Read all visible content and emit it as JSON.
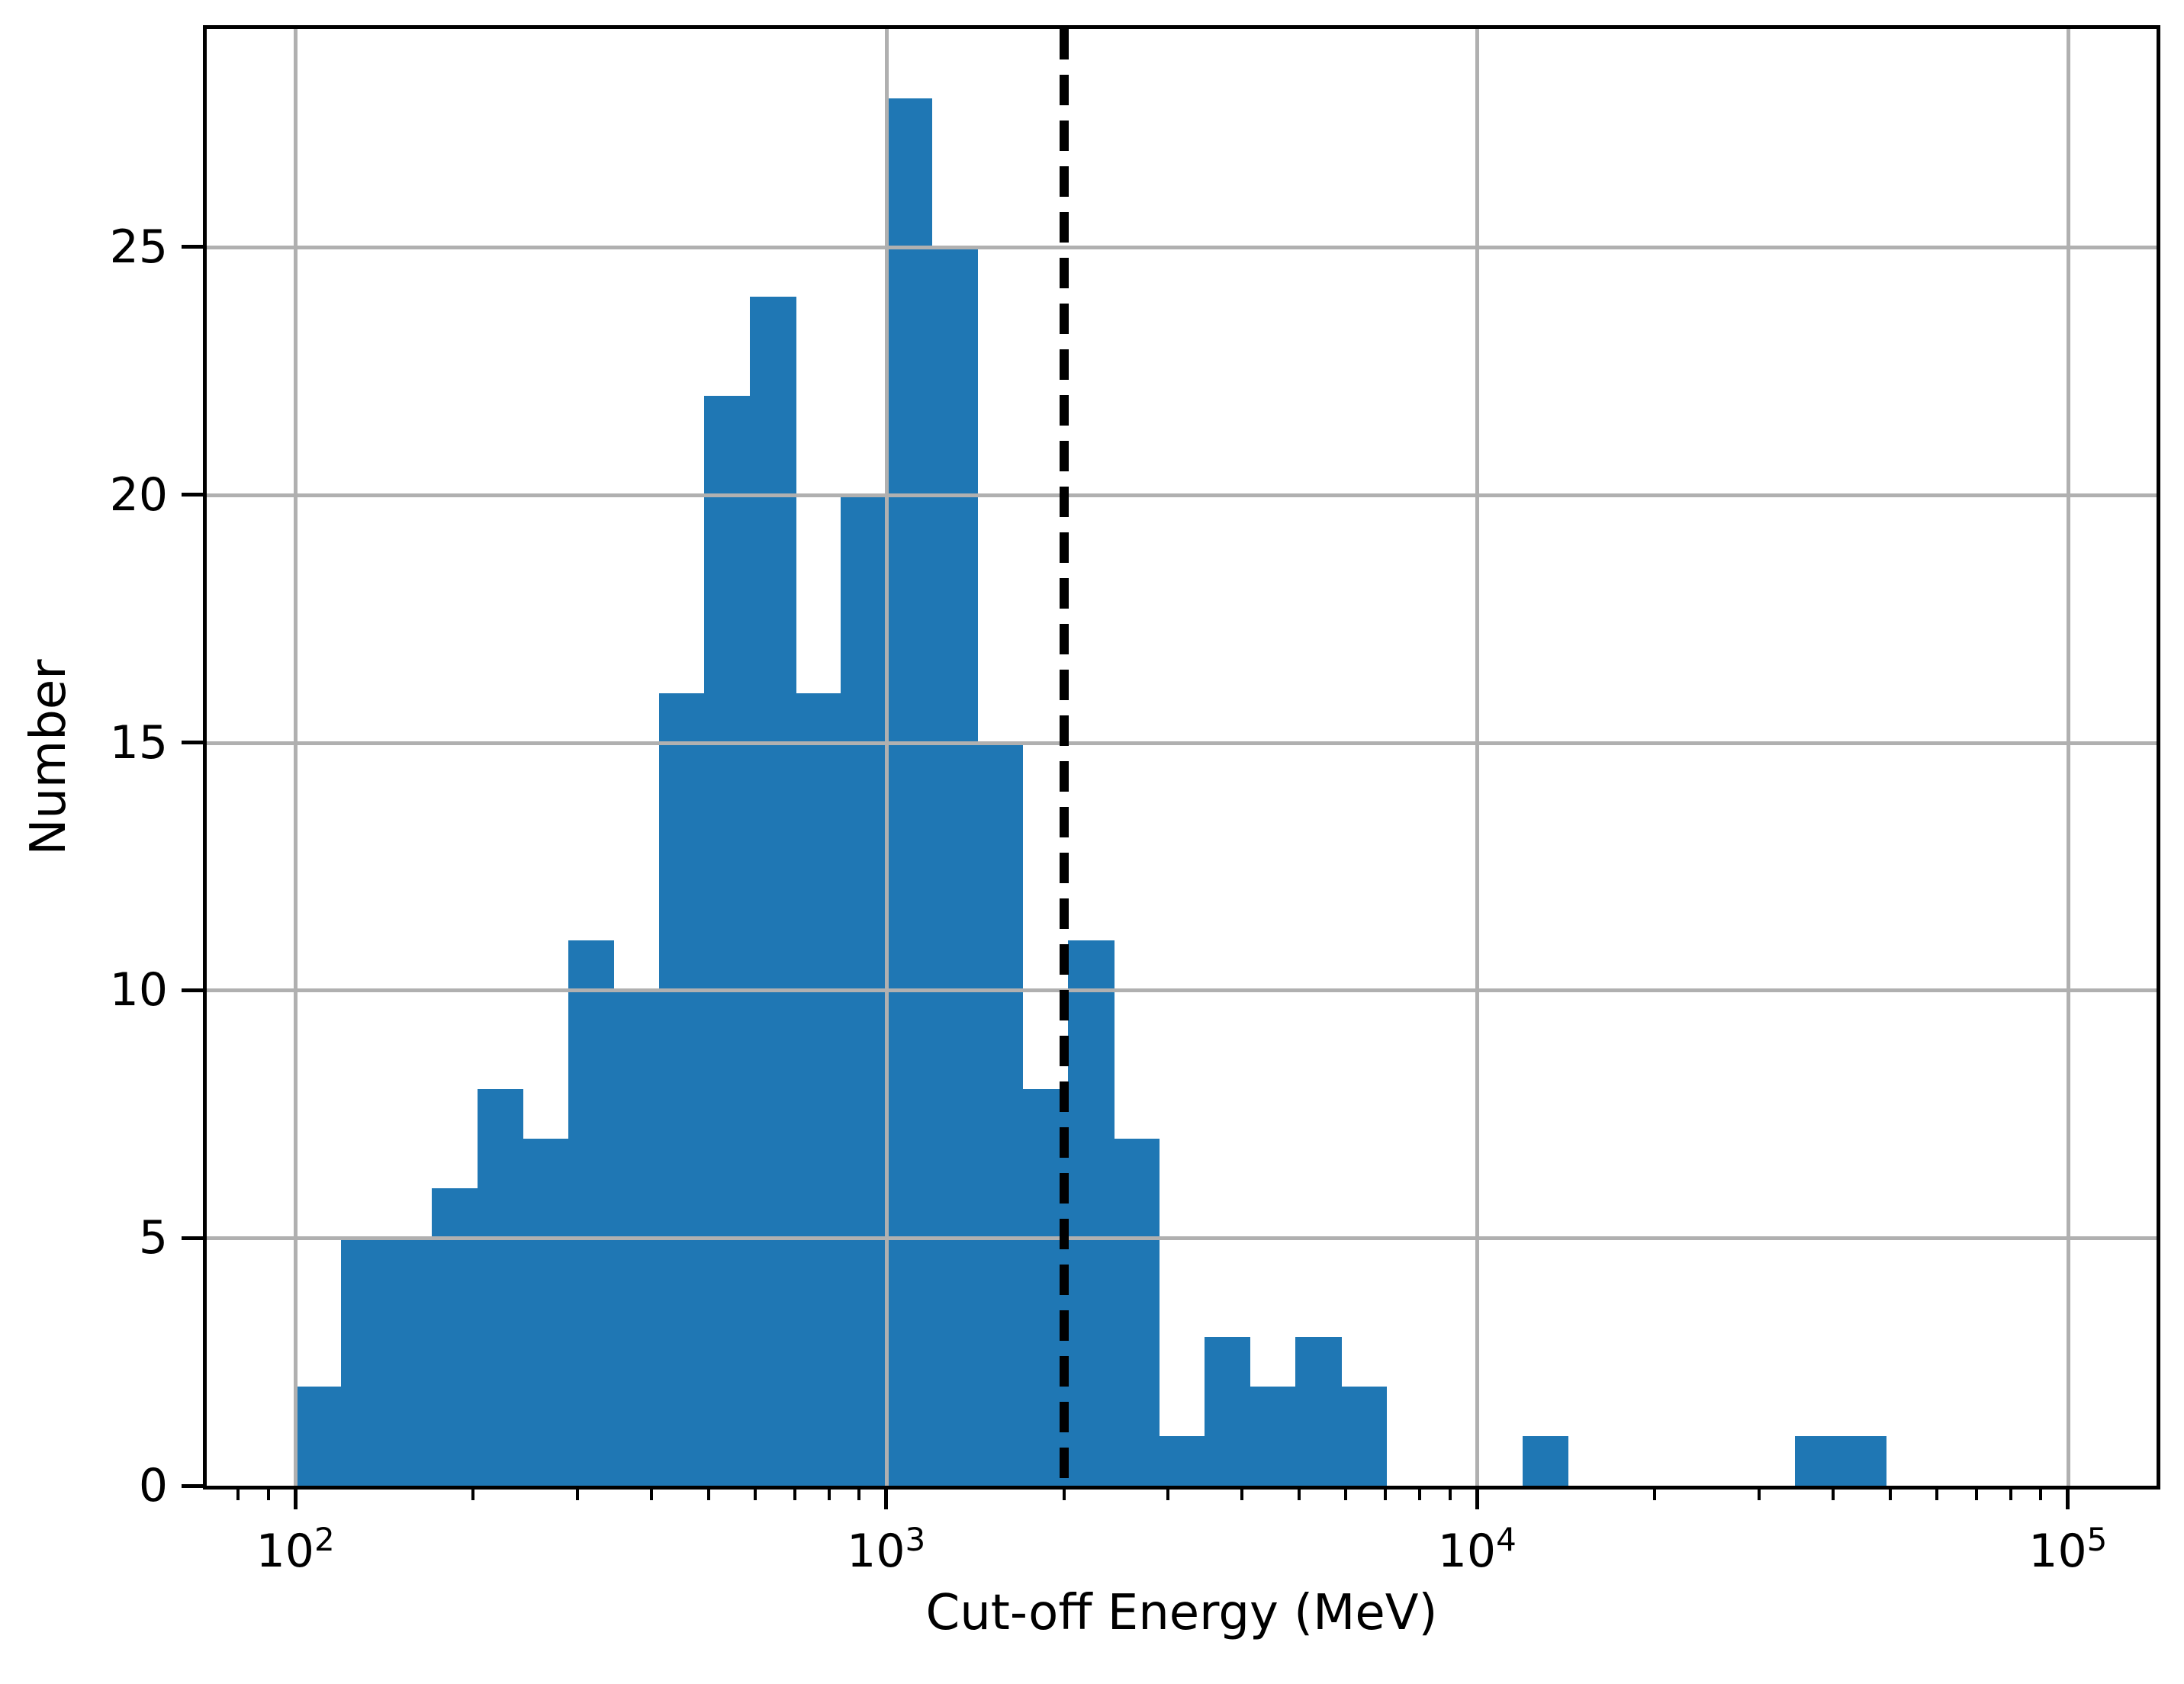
{
  "figure": {
    "xlabel": "Cut-off Energy (MeV)",
    "ylabel": "Number"
  },
  "chart_data": {
    "type": "bar",
    "subtype": "histogram",
    "title": "",
    "xlabel": "Cut-off Energy (MeV)",
    "ylabel": "Number",
    "x_scale": "log10",
    "xlim_log10": [
      1.85,
      5.15
    ],
    "ylim": [
      0,
      29.4
    ],
    "grid": true,
    "grid_color": "#b0b0b0",
    "bar_color": "#1f77b4",
    "axis_color": "#000000",
    "bins": {
      "edges_log10_start": 2.0,
      "edges_log10_end": 5.0,
      "n_bins": 39,
      "note": "39 equal bins in log10 space from 100 MeV to 100000 MeV"
    },
    "counts": [
      2,
      5,
      5,
      6,
      8,
      7,
      11,
      10,
      16,
      22,
      24,
      16,
      20,
      28,
      25,
      15,
      8,
      11,
      7,
      1,
      3,
      2,
      3,
      2,
      0,
      0,
      0,
      1,
      0,
      0,
      0,
      0,
      0,
      1,
      1,
      0,
      0,
      0,
      0
    ],
    "x_major_ticks": [
      {
        "value": 100,
        "base": "10",
        "exponent": "2"
      },
      {
        "value": 1000,
        "base": "10",
        "exponent": "3"
      },
      {
        "value": 10000,
        "base": "10",
        "exponent": "4"
      },
      {
        "value": 100000,
        "base": "10",
        "exponent": "5"
      }
    ],
    "y_ticks": [
      {
        "value": 0,
        "label": "0"
      },
      {
        "value": 5,
        "label": "5"
      },
      {
        "value": 10,
        "label": "10"
      },
      {
        "value": 15,
        "label": "15"
      },
      {
        "value": 20,
        "label": "20"
      },
      {
        "value": 25,
        "label": "25"
      }
    ],
    "vline": {
      "value": 2000,
      "style": "dashed",
      "color": "#000000"
    },
    "legend": null
  }
}
